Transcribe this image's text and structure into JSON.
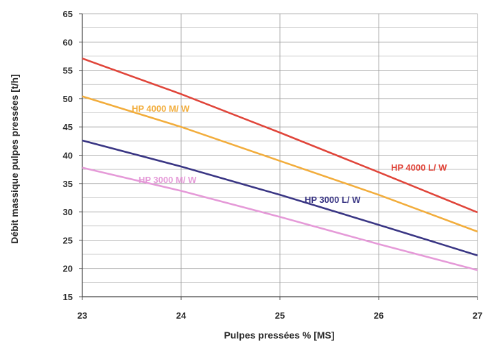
{
  "chart_data": {
    "type": "line",
    "title": "",
    "xlabel": "Pulpes pressées % [MS]",
    "ylabel": "Débit massique pulpes pressées [t/h]",
    "xlim": [
      23,
      27
    ],
    "ylim": [
      15,
      65
    ],
    "xticks": [
      "23",
      "24",
      "25",
      "26",
      "27"
    ],
    "yticks": [
      "15",
      "20",
      "25",
      "30",
      "35",
      "40",
      "45",
      "50",
      "55",
      "60",
      "65"
    ],
    "grid": true,
    "series": [
      {
        "name": "HP 4000 L/ W",
        "color": "#e0453a",
        "x": [
          23,
          24,
          25,
          26,
          27
        ],
        "y": [
          57.1,
          50.8,
          44,
          37,
          29.9
        ]
      },
      {
        "name": "HP 4000 M/ W",
        "color": "#f2ad3c",
        "x": [
          23,
          24,
          25,
          26,
          27
        ],
        "y": [
          50.4,
          45,
          39,
          33,
          26.5
        ]
      },
      {
        "name": "HP 3000 L/ W",
        "color": "#3a3684",
        "x": [
          23,
          24,
          25,
          26,
          27
        ],
        "y": [
          42.6,
          38,
          33,
          27.7,
          22.3
        ]
      },
      {
        "name": "HP 3000 M/ W",
        "color": "#e59ad8",
        "x": [
          23,
          24,
          25,
          26,
          27
        ],
        "y": [
          37.8,
          33.7,
          29.1,
          24.3,
          19.7
        ]
      }
    ]
  }
}
